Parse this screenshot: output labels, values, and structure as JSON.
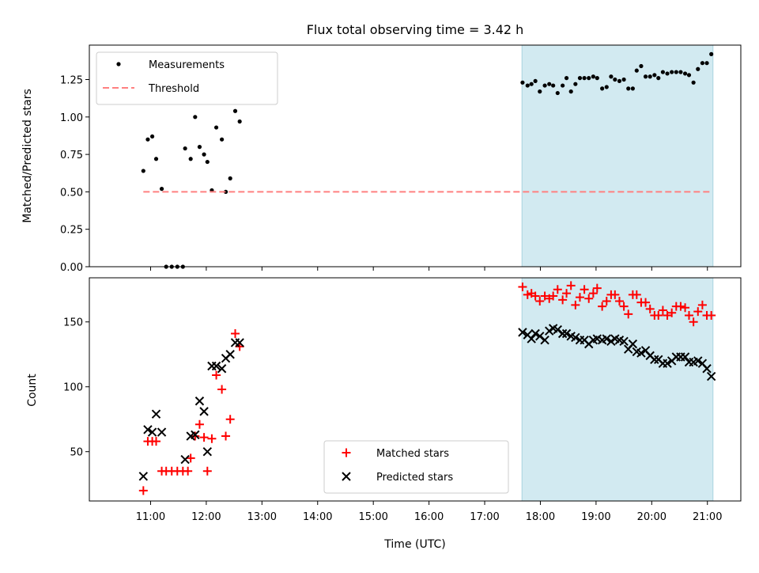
{
  "chart_data": [
    {
      "type": "scatter",
      "title": "Flux total observing time = 3.42 h",
      "xlabel": "",
      "ylabel": "Matched/Predicted stars",
      "ylim": [
        0.0,
        1.48
      ],
      "yticks": [
        0.0,
        0.25,
        0.5,
        0.75,
        1.0,
        1.25
      ],
      "ytick_labels": [
        "0.00",
        "0.25",
        "0.50",
        "0.75",
        "1.00",
        "1.25"
      ],
      "legend_position": "upper-left",
      "shaded_interval": {
        "start_h": 17.67,
        "end_h": 21.1,
        "color": "#d2eaf1"
      },
      "series": [
        {
          "name": "Measurements",
          "style": "dot",
          "color": "#000000",
          "points": [
            [
              10.87,
              0.64
            ],
            [
              10.95,
              0.85
            ],
            [
              11.03,
              0.87
            ],
            [
              11.1,
              0.72
            ],
            [
              11.2,
              0.52
            ],
            [
              11.28,
              0.0
            ],
            [
              11.38,
              0.0
            ],
            [
              11.48,
              0.0
            ],
            [
              11.58,
              0.0
            ],
            [
              11.62,
              0.79
            ],
            [
              11.72,
              0.72
            ],
            [
              11.8,
              1.0
            ],
            [
              11.88,
              0.8
            ],
            [
              11.96,
              0.75
            ],
            [
              12.02,
              0.7
            ],
            [
              12.1,
              0.51
            ],
            [
              12.18,
              0.93
            ],
            [
              12.28,
              0.85
            ],
            [
              12.35,
              0.5
            ],
            [
              12.43,
              0.59
            ],
            [
              12.52,
              1.04
            ],
            [
              12.6,
              0.97
            ],
            [
              17.68,
              1.23
            ],
            [
              17.77,
              1.21
            ],
            [
              17.84,
              1.22
            ],
            [
              17.91,
              1.24
            ],
            [
              17.99,
              1.17
            ],
            [
              18.08,
              1.21
            ],
            [
              18.16,
              1.22
            ],
            [
              18.23,
              1.21
            ],
            [
              18.31,
              1.16
            ],
            [
              18.4,
              1.21
            ],
            [
              18.47,
              1.26
            ],
            [
              18.55,
              1.17
            ],
            [
              18.63,
              1.22
            ],
            [
              18.71,
              1.26
            ],
            [
              18.79,
              1.26
            ],
            [
              18.87,
              1.26
            ],
            [
              18.95,
              1.27
            ],
            [
              19.02,
              1.26
            ],
            [
              19.11,
              1.19
            ],
            [
              19.19,
              1.2
            ],
            [
              19.27,
              1.27
            ],
            [
              19.34,
              1.25
            ],
            [
              19.42,
              1.24
            ],
            [
              19.5,
              1.25
            ],
            [
              19.58,
              1.19
            ],
            [
              19.66,
              1.19
            ],
            [
              19.73,
              1.31
            ],
            [
              19.81,
              1.34
            ],
            [
              19.89,
              1.27
            ],
            [
              19.97,
              1.27
            ],
            [
              20.05,
              1.28
            ],
            [
              20.12,
              1.26
            ],
            [
              20.2,
              1.3
            ],
            [
              20.28,
              1.29
            ],
            [
              20.36,
              1.3
            ],
            [
              20.44,
              1.3
            ],
            [
              20.52,
              1.3
            ],
            [
              20.6,
              1.29
            ],
            [
              20.67,
              1.28
            ],
            [
              20.75,
              1.23
            ],
            [
              20.83,
              1.32
            ],
            [
              20.91,
              1.36
            ],
            [
              20.99,
              1.36
            ],
            [
              21.07,
              1.42
            ]
          ]
        },
        {
          "name": "Threshold",
          "style": "dashed-line",
          "color": "#ff8080",
          "points": [
            [
              10.87,
              0.5
            ],
            [
              21.07,
              0.5
            ]
          ]
        }
      ]
    },
    {
      "type": "scatter",
      "title": "",
      "xlabel": "Time (UTC)",
      "ylabel": "Count",
      "ylim": [
        12,
        184
      ],
      "yticks": [
        50,
        100,
        150
      ],
      "ytick_labels": [
        "50",
        "100",
        "150"
      ],
      "xlim": [
        9.9,
        21.6
      ],
      "xticks": [
        11,
        12,
        13,
        14,
        15,
        16,
        17,
        18,
        19,
        20,
        21
      ],
      "xtick_labels": [
        "11:00",
        "12:00",
        "13:00",
        "14:00",
        "15:00",
        "16:00",
        "17:00",
        "18:00",
        "19:00",
        "20:00",
        "21:00"
      ],
      "legend_position": "lower-center",
      "shaded_interval": {
        "start_h": 17.67,
        "end_h": 21.1,
        "color": "#d2eaf1"
      },
      "series": [
        {
          "name": "Matched stars",
          "style": "plus",
          "color": "#ff0000",
          "points": [
            [
              10.87,
              20
            ],
            [
              10.95,
              58
            ],
            [
              11.03,
              58
            ],
            [
              11.1,
              58
            ],
            [
              11.2,
              35
            ],
            [
              11.28,
              35
            ],
            [
              11.38,
              35
            ],
            [
              11.48,
              35
            ],
            [
              11.58,
              35
            ],
            [
              11.67,
              35
            ],
            [
              11.72,
              45
            ],
            [
              11.8,
              62
            ],
            [
              11.88,
              71
            ],
            [
              11.96,
              61
            ],
            [
              12.02,
              35
            ],
            [
              12.1,
              60
            ],
            [
              12.18,
              109
            ],
            [
              12.28,
              98
            ],
            [
              12.35,
              62
            ],
            [
              12.43,
              75
            ],
            [
              12.52,
              141
            ],
            [
              12.6,
              131
            ],
            [
              17.68,
              177
            ],
            [
              17.77,
              171
            ],
            [
              17.84,
              172
            ],
            [
              17.91,
              170
            ],
            [
              17.99,
              166
            ],
            [
              18.08,
              170
            ],
            [
              18.16,
              168
            ],
            [
              18.23,
              170
            ],
            [
              18.31,
              175
            ],
            [
              18.4,
              167
            ],
            [
              18.47,
              172
            ],
            [
              18.55,
              178
            ],
            [
              18.63,
              163
            ],
            [
              18.71,
              169
            ],
            [
              18.79,
              175
            ],
            [
              18.87,
              168
            ],
            [
              18.95,
              172
            ],
            [
              19.02,
              176
            ],
            [
              19.11,
              162
            ],
            [
              19.19,
              166
            ],
            [
              19.27,
              171
            ],
            [
              19.34,
              171
            ],
            [
              19.42,
              166
            ],
            [
              19.5,
              162
            ],
            [
              19.58,
              156
            ],
            [
              19.66,
              171
            ],
            [
              19.73,
              171
            ],
            [
              19.81,
              165
            ],
            [
              19.89,
              165
            ],
            [
              19.97,
              160
            ],
            [
              20.05,
              155
            ],
            [
              20.12,
              155
            ],
            [
              20.2,
              159
            ],
            [
              20.28,
              155
            ],
            [
              20.36,
              157
            ],
            [
              20.44,
              162
            ],
            [
              20.52,
              162
            ],
            [
              20.6,
              161
            ],
            [
              20.67,
              155
            ],
            [
              20.75,
              150
            ],
            [
              20.83,
              158
            ],
            [
              20.91,
              163
            ],
            [
              20.99,
              155
            ],
            [
              21.07,
              155
            ]
          ]
        },
        {
          "name": "Predicted stars",
          "style": "cross",
          "color": "#000000",
          "points": [
            [
              10.87,
              31
            ],
            [
              10.95,
              67
            ],
            [
              11.03,
              65
            ],
            [
              11.1,
              79
            ],
            [
              11.2,
              65
            ],
            [
              11.62,
              44
            ],
            [
              11.72,
              62
            ],
            [
              11.8,
              63
            ],
            [
              11.88,
              89
            ],
            [
              11.96,
              81
            ],
            [
              12.02,
              50
            ],
            [
              12.1,
              116
            ],
            [
              12.18,
              116
            ],
            [
              12.28,
              114
            ],
            [
              12.35,
              122
            ],
            [
              12.43,
              125
            ],
            [
              12.52,
              134
            ],
            [
              12.6,
              134
            ],
            [
              17.68,
              142
            ],
            [
              17.77,
              140
            ],
            [
              17.84,
              137
            ],
            [
              17.91,
              141
            ],
            [
              17.99,
              139
            ],
            [
              18.08,
              136
            ],
            [
              18.16,
              143
            ],
            [
              18.23,
              145
            ],
            [
              18.31,
              144
            ],
            [
              18.4,
              141
            ],
            [
              18.47,
              141
            ],
            [
              18.55,
              139
            ],
            [
              18.63,
              138
            ],
            [
              18.71,
              136
            ],
            [
              18.79,
              136
            ],
            [
              18.87,
              133
            ],
            [
              18.95,
              136
            ],
            [
              19.02,
              137
            ],
            [
              19.11,
              136
            ],
            [
              19.19,
              137
            ],
            [
              19.27,
              135
            ],
            [
              19.34,
              137
            ],
            [
              19.42,
              136
            ],
            [
              19.5,
              135
            ],
            [
              19.58,
              129
            ],
            [
              19.66,
              133
            ],
            [
              19.73,
              127
            ],
            [
              19.81,
              126
            ],
            [
              19.89,
              128
            ],
            [
              19.97,
              124
            ],
            [
              20.05,
              121
            ],
            [
              20.12,
              121
            ],
            [
              20.2,
              118
            ],
            [
              20.28,
              118
            ],
            [
              20.36,
              120
            ],
            [
              20.44,
              123
            ],
            [
              20.52,
              123
            ],
            [
              20.6,
              123
            ],
            [
              20.67,
              119
            ],
            [
              20.75,
              119
            ],
            [
              20.83,
              120
            ],
            [
              20.91,
              118
            ],
            [
              20.99,
              114
            ],
            [
              21.07,
              108
            ]
          ]
        }
      ]
    }
  ]
}
